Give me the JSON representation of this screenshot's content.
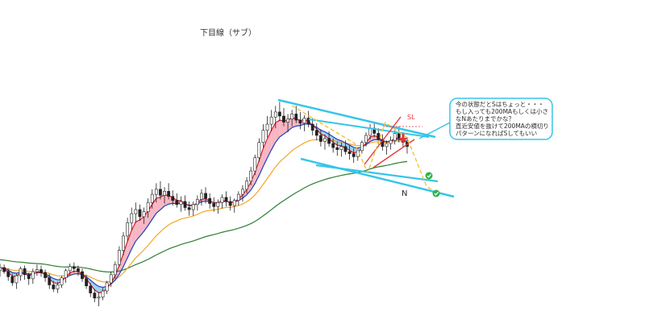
{
  "chart_data": {
    "type": "line",
    "title": "下目線（サブ）",
    "subtitle": "",
    "xlabel": "",
    "ylabel": "",
    "grid": false,
    "legend": "none",
    "annotations": {
      "stop_label": "SL",
      "target_label": "N",
      "note_lines": [
        "今の状態だとSはちょっと・・・",
        "もし入っても200MAもしくは小さ",
        "なNあたりまでかな？",
        "",
        "直近安値を抜けて200MAの横切り",
        "パターンになればSしてもいい"
      ]
    },
    "candles": [
      [
        84,
        91,
        78,
        87
      ],
      [
        87,
        90,
        81,
        83
      ],
      [
        83,
        86,
        74,
        78
      ],
      [
        78,
        81,
        69,
        72
      ],
      [
        72,
        81,
        66,
        79
      ],
      [
        79,
        88,
        74,
        86
      ],
      [
        86,
        89,
        75,
        80
      ],
      [
        80,
        82,
        70,
        76
      ],
      [
        76,
        86,
        71,
        83
      ],
      [
        83,
        90,
        79,
        85
      ],
      [
        85,
        89,
        78,
        82
      ],
      [
        82,
        85,
        73,
        77
      ],
      [
        77,
        81,
        66,
        70
      ],
      [
        70,
        74,
        63,
        66
      ],
      [
        66,
        73,
        62,
        70
      ],
      [
        70,
        79,
        67,
        77
      ],
      [
        77,
        86,
        72,
        84
      ],
      [
        84,
        91,
        80,
        88
      ],
      [
        88,
        92,
        82,
        86
      ],
      [
        86,
        89,
        79,
        83
      ],
      [
        83,
        86,
        73,
        76
      ],
      [
        76,
        80,
        66,
        69
      ],
      [
        69,
        72,
        58,
        62
      ],
      [
        62,
        66,
        53,
        57
      ],
      [
        57,
        63,
        49,
        58
      ],
      [
        58,
        67,
        55,
        64
      ],
      [
        64,
        74,
        61,
        72
      ],
      [
        72,
        83,
        68,
        80
      ],
      [
        80,
        93,
        76,
        90
      ],
      [
        90,
        108,
        88,
        104
      ],
      [
        104,
        122,
        99,
        118
      ],
      [
        118,
        136,
        113,
        131
      ],
      [
        131,
        146,
        124,
        140
      ],
      [
        140,
        151,
        131,
        144
      ],
      [
        144,
        149,
        133,
        137
      ],
      [
        137,
        146,
        130,
        142
      ],
      [
        142,
        155,
        136,
        151
      ],
      [
        151,
        164,
        145,
        159
      ],
      [
        159,
        170,
        151,
        164
      ],
      [
        164,
        172,
        154,
        158
      ],
      [
        158,
        166,
        150,
        162
      ],
      [
        162,
        170,
        154,
        157
      ],
      [
        157,
        163,
        148,
        153
      ],
      [
        153,
        160,
        146,
        149
      ],
      [
        149,
        157,
        142,
        152
      ],
      [
        152,
        158,
        143,
        146
      ],
      [
        146,
        152,
        138,
        144
      ],
      [
        144,
        152,
        138,
        149
      ],
      [
        149,
        158,
        143,
        154
      ],
      [
        154,
        164,
        148,
        160
      ],
      [
        160,
        166,
        150,
        155
      ],
      [
        155,
        160,
        145,
        150
      ],
      [
        150,
        156,
        142,
        147
      ],
      [
        147,
        154,
        140,
        151
      ],
      [
        151,
        159,
        145,
        156
      ],
      [
        156,
        162,
        147,
        152
      ],
      [
        152,
        157,
        143,
        148
      ],
      [
        148,
        155,
        141,
        153
      ],
      [
        153,
        162,
        148,
        159
      ],
      [
        159,
        168,
        152,
        164
      ],
      [
        164,
        176,
        160,
        172
      ],
      [
        172,
        186,
        168,
        182
      ],
      [
        182,
        198,
        178,
        195
      ],
      [
        195,
        214,
        191,
        210
      ],
      [
        210,
        228,
        205,
        222
      ],
      [
        222,
        236,
        215,
        228
      ],
      [
        228,
        242,
        221,
        235
      ],
      [
        235,
        246,
        224,
        240
      ],
      [
        240,
        250,
        231,
        236
      ],
      [
        236,
        244,
        226,
        230
      ],
      [
        230,
        238,
        220,
        233
      ],
      [
        233,
        242,
        226,
        238
      ],
      [
        238,
        246,
        229,
        232
      ],
      [
        232,
        240,
        223,
        229
      ],
      [
        229,
        237,
        221,
        234
      ],
      [
        234,
        241,
        225,
        228
      ],
      [
        228,
        234,
        217,
        222
      ],
      [
        222,
        229,
        212,
        217
      ],
      [
        217,
        223,
        206,
        211
      ],
      [
        211,
        218,
        203,
        214
      ],
      [
        214,
        221,
        206,
        209
      ],
      [
        209,
        214,
        200,
        205
      ],
      [
        205,
        211,
        197,
        203
      ],
      [
        203,
        210,
        196,
        206
      ],
      [
        206,
        212,
        198,
        201
      ],
      [
        201,
        207,
        193,
        199
      ],
      [
        199,
        204,
        190,
        196
      ],
      [
        196,
        205,
        192,
        202
      ],
      [
        202,
        212,
        199,
        210
      ],
      [
        210,
        220,
        206,
        217
      ],
      [
        217,
        228,
        213,
        224
      ],
      [
        224,
        230,
        215,
        219
      ],
      [
        219,
        224,
        208,
        213
      ],
      [
        213,
        218,
        202,
        206
      ],
      [
        206,
        212,
        198,
        209
      ],
      [
        209,
        216,
        203,
        212
      ],
      [
        212,
        222,
        208,
        219
      ],
      [
        219,
        226,
        210,
        214
      ],
      [
        214,
        220,
        205,
        210
      ],
      [
        210,
        215,
        199,
        206
      ]
    ]
  }
}
